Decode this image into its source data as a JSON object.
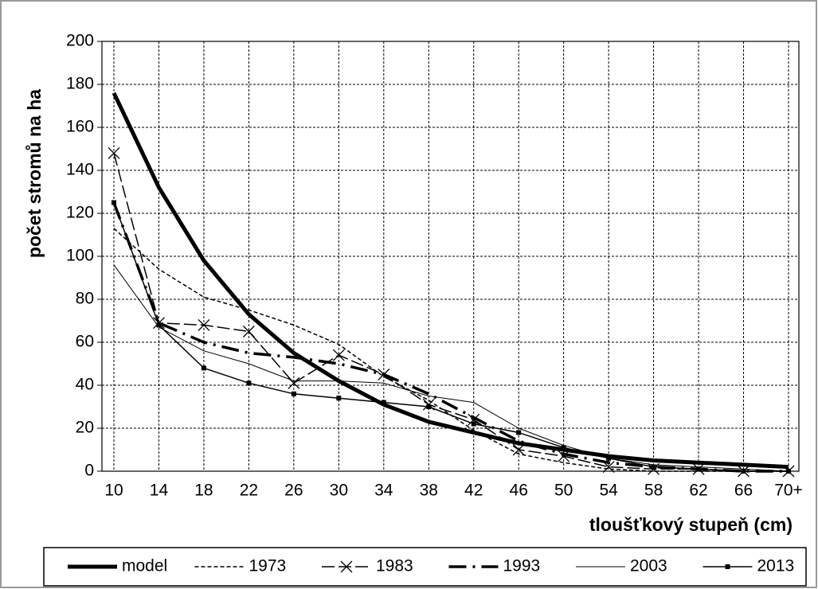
{
  "chart_data": {
    "type": "line",
    "x_label": "tloušťkový stupeň (cm)",
    "y_label": "počet stromů na ha",
    "categories": [
      "10",
      "14",
      "18",
      "22",
      "26",
      "30",
      "34",
      "38",
      "42",
      "46",
      "50",
      "54",
      "58",
      "62",
      "66",
      "70+"
    ],
    "series": [
      {
        "name": "model",
        "color": "#000000",
        "values": [
          176,
          132,
          98,
          73,
          55,
          42,
          31,
          23,
          18,
          13,
          10,
          7,
          5,
          4,
          3,
          2
        ]
      },
      {
        "name": "1973",
        "color": "#000000",
        "values": [
          113,
          94,
          81,
          75,
          68,
          59,
          44,
          33,
          19,
          8,
          4,
          1,
          0,
          0,
          0,
          0
        ]
      },
      {
        "name": "1983",
        "color": "#000000",
        "values": [
          148,
          69,
          68,
          65,
          41,
          54,
          45,
          31,
          24,
          10,
          7,
          2,
          1,
          1,
          0,
          0
        ]
      },
      {
        "name": "1993",
        "color": "#000000",
        "values": [
          125,
          69,
          60,
          55,
          53,
          50,
          45,
          36,
          25,
          14,
          8,
          4,
          2,
          1,
          0,
          0
        ]
      },
      {
        "name": "2003",
        "color": "#000000",
        "values": [
          96,
          67,
          56,
          50,
          42,
          42,
          41,
          35,
          32,
          20,
          12,
          6,
          3,
          2,
          1,
          0
        ]
      },
      {
        "name": "2013",
        "color": "#000000",
        "values": [
          125,
          68,
          48,
          41,
          36,
          34,
          32,
          30,
          22,
          18,
          11,
          6,
          2,
          1,
          0,
          0
        ]
      }
    ],
    "ylim": [
      0,
      200
    ],
    "yticks": [
      0,
      20,
      40,
      60,
      80,
      100,
      120,
      140,
      160,
      180,
      200
    ],
    "grid": true,
    "legend": "bottom"
  }
}
